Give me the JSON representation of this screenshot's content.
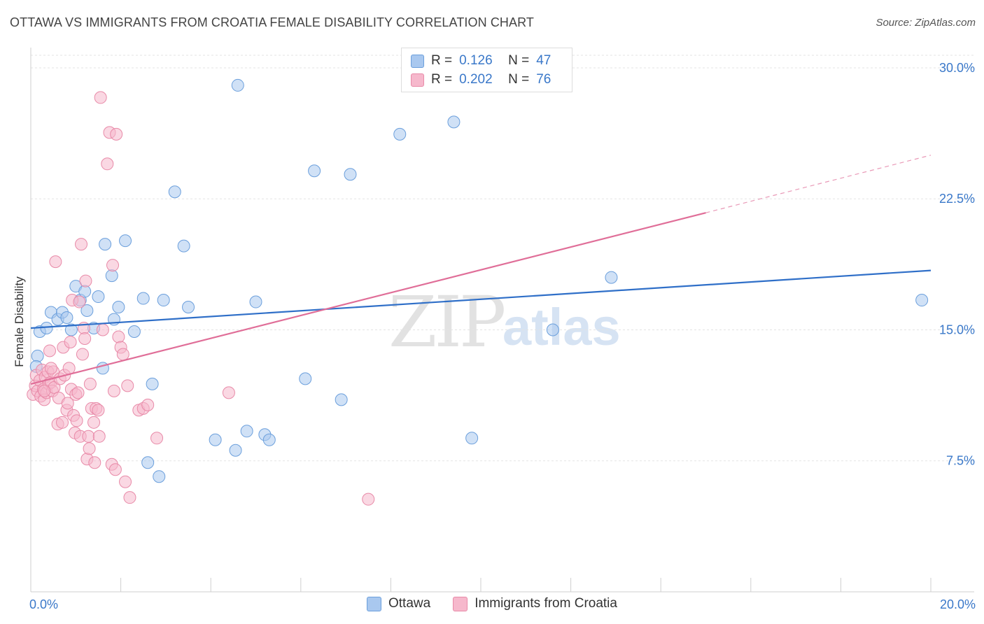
{
  "header": {
    "title": "OTTAWA VS IMMIGRANTS FROM CROATIA FEMALE DISABILITY CORRELATION CHART",
    "source": "Source: ZipAtlas.com"
  },
  "watermark": {
    "zip": "ZIP",
    "atlas": "atlas"
  },
  "legend_top": {
    "rows": [
      {
        "r_label": "R =",
        "r_value": "0.126",
        "n_label": "N =",
        "n_value": "47"
      },
      {
        "r_label": "R =",
        "r_value": "0.202",
        "n_label": "N =",
        "n_value": "76"
      }
    ]
  },
  "legend_bottom": {
    "items": [
      "Ottawa",
      "Immigrants from Croatia"
    ]
  },
  "colors": {
    "blue_fill": "#a9c8ef",
    "blue_stroke": "#6b9fdc",
    "blue_line": "#2f6fc8",
    "pink_fill": "#f6b8cc",
    "pink_stroke": "#e88aa8",
    "pink_line": "#e06e98",
    "tick_text": "#3a78c9"
  },
  "chart_data": {
    "type": "scatter",
    "title": "OTTAWA VS IMMIGRANTS FROM CROATIA FEMALE DISABILITY CORRELATION CHART",
    "xlabel": "",
    "ylabel": "Female Disability",
    "xlim": [
      0,
      20
    ],
    "ylim": [
      0,
      31
    ],
    "x_ticks": [
      0,
      20
    ],
    "x_tick_labels": [
      "0.0%",
      "20.0%"
    ],
    "y_ticks": [
      7.5,
      15.0,
      22.5,
      30.0
    ],
    "y_tick_labels": [
      "7.5%",
      "15.0%",
      "22.5%",
      "30.0%"
    ],
    "grid": true,
    "legend_position": "top-center",
    "series": [
      {
        "name": "Ottawa",
        "r": 0.126,
        "n": 47,
        "trend": {
          "x": [
            0,
            20
          ],
          "y": [
            15.1,
            18.4
          ]
        },
        "points": [
          [
            0.15,
            13.5
          ],
          [
            0.2,
            14.9
          ],
          [
            0.35,
            15.1
          ],
          [
            0.45,
            16.0
          ],
          [
            0.6,
            15.6
          ],
          [
            0.7,
            16.0
          ],
          [
            0.8,
            15.7
          ],
          [
            0.9,
            15.0
          ],
          [
            1.0,
            17.5
          ],
          [
            1.1,
            16.7
          ],
          [
            1.2,
            17.2
          ],
          [
            1.25,
            16.1
          ],
          [
            1.4,
            15.1
          ],
          [
            1.5,
            16.9
          ],
          [
            1.6,
            12.8
          ],
          [
            1.65,
            19.9
          ],
          [
            1.8,
            18.1
          ],
          [
            1.85,
            15.6
          ],
          [
            1.95,
            16.3
          ],
          [
            2.1,
            20.1
          ],
          [
            2.3,
            14.9
          ],
          [
            2.5,
            16.8
          ],
          [
            2.6,
            7.4
          ],
          [
            2.7,
            11.9
          ],
          [
            2.85,
            6.6
          ],
          [
            2.95,
            16.7
          ],
          [
            3.2,
            22.9
          ],
          [
            3.4,
            19.8
          ],
          [
            3.5,
            16.3
          ],
          [
            4.1,
            8.7
          ],
          [
            4.6,
            29.0
          ],
          [
            4.55,
            8.1
          ],
          [
            4.8,
            9.2
          ],
          [
            5.0,
            16.6
          ],
          [
            5.2,
            9.0
          ],
          [
            5.3,
            8.7
          ],
          [
            6.1,
            12.2
          ],
          [
            6.3,
            24.1
          ],
          [
            6.9,
            11.0
          ],
          [
            7.1,
            23.9
          ],
          [
            8.2,
            26.2
          ],
          [
            9.4,
            26.9
          ],
          [
            9.8,
            8.8
          ],
          [
            11.6,
            15.0
          ],
          [
            12.9,
            18.0
          ],
          [
            19.8,
            16.7
          ],
          [
            0.12,
            12.9
          ]
        ]
      },
      {
        "name": "Immigrants from Croatia",
        "r": 0.202,
        "n": 76,
        "trend": {
          "x": [
            0,
            15
          ],
          "y": [
            11.9,
            21.7
          ]
        },
        "trend_dashed": {
          "x": [
            15,
            20
          ],
          "y": [
            21.7,
            25.0
          ]
        },
        "points": [
          [
            0.05,
            11.3
          ],
          [
            0.1,
            11.8
          ],
          [
            0.12,
            12.4
          ],
          [
            0.15,
            11.5
          ],
          [
            0.2,
            12.1
          ],
          [
            0.22,
            11.2
          ],
          [
            0.25,
            12.7
          ],
          [
            0.28,
            11.6
          ],
          [
            0.3,
            11.0
          ],
          [
            0.32,
            12.3
          ],
          [
            0.35,
            11.4
          ],
          [
            0.38,
            12.6
          ],
          [
            0.4,
            11.9
          ],
          [
            0.42,
            13.8
          ],
          [
            0.45,
            12.0
          ],
          [
            0.48,
            11.5
          ],
          [
            0.5,
            12.6
          ],
          [
            0.52,
            11.7
          ],
          [
            0.55,
            18.9
          ],
          [
            0.6,
            9.6
          ],
          [
            0.62,
            11.1
          ],
          [
            0.65,
            12.2
          ],
          [
            0.7,
            9.7
          ],
          [
            0.72,
            14.0
          ],
          [
            0.75,
            12.4
          ],
          [
            0.8,
            10.4
          ],
          [
            0.82,
            10.8
          ],
          [
            0.85,
            12.8
          ],
          [
            0.88,
            14.3
          ],
          [
            0.9,
            11.6
          ],
          [
            0.92,
            16.7
          ],
          [
            0.95,
            10.1
          ],
          [
            0.98,
            9.1
          ],
          [
            1.0,
            11.3
          ],
          [
            1.02,
            9.8
          ],
          [
            1.05,
            11.4
          ],
          [
            1.08,
            16.6
          ],
          [
            1.1,
            8.9
          ],
          [
            1.12,
            19.9
          ],
          [
            1.15,
            13.6
          ],
          [
            1.18,
            15.1
          ],
          [
            1.2,
            14.5
          ],
          [
            1.22,
            17.8
          ],
          [
            1.25,
            7.6
          ],
          [
            1.28,
            8.9
          ],
          [
            1.3,
            8.2
          ],
          [
            1.32,
            11.9
          ],
          [
            1.35,
            10.5
          ],
          [
            1.4,
            9.7
          ],
          [
            1.42,
            7.4
          ],
          [
            1.45,
            10.5
          ],
          [
            1.5,
            10.4
          ],
          [
            1.52,
            8.9
          ],
          [
            1.55,
            28.3
          ],
          [
            1.6,
            15.0
          ],
          [
            1.7,
            24.5
          ],
          [
            1.75,
            26.3
          ],
          [
            1.8,
            7.3
          ],
          [
            1.82,
            18.7
          ],
          [
            1.85,
            11.5
          ],
          [
            1.88,
            7.0
          ],
          [
            1.9,
            26.2
          ],
          [
            1.95,
            14.6
          ],
          [
            2.0,
            14.0
          ],
          [
            2.05,
            13.6
          ],
          [
            2.1,
            6.3
          ],
          [
            2.15,
            11.8
          ],
          [
            2.2,
            5.4
          ],
          [
            2.4,
            10.4
          ],
          [
            2.5,
            10.5
          ],
          [
            2.6,
            10.7
          ],
          [
            2.8,
            8.8
          ],
          [
            4.4,
            11.4
          ],
          [
            7.5,
            5.3
          ],
          [
            0.3,
            11.5
          ],
          [
            0.45,
            12.8
          ]
        ]
      }
    ]
  }
}
